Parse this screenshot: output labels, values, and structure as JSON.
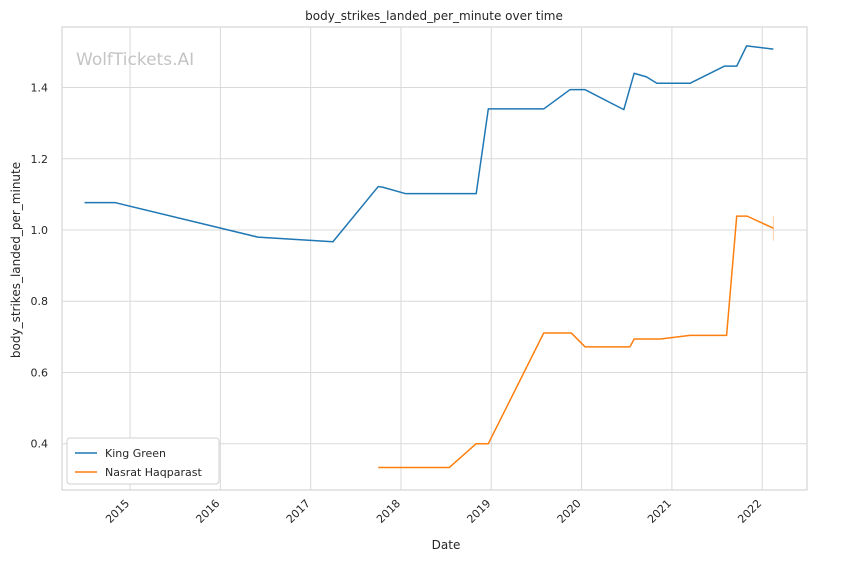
{
  "chart_data": {
    "type": "line",
    "title": "body_strikes_landed_per_minute over time",
    "xlabel": "Date",
    "ylabel": "body_strikes_landed_per_minute",
    "watermark": "WolfTickets.AI",
    "grid": true,
    "legend_position": "lower-left",
    "xlim": [
      "2014-04-01",
      "2022-07-01"
    ],
    "ylim": [
      0.27,
      1.57
    ],
    "x_ticks": [
      "2015",
      "2016",
      "2017",
      "2018",
      "2019",
      "2020",
      "2021",
      "2022"
    ],
    "y_ticks": [
      "0.4",
      "0.6",
      "0.8",
      "1.0",
      "1.2",
      "1.4"
    ],
    "series": [
      {
        "name": "King Green",
        "color": "#1f77b4",
        "points": [
          {
            "x": "2014-07-01",
            "y": 1.077
          },
          {
            "x": "2014-11-01",
            "y": 1.077
          },
          {
            "x": "2016-06-01",
            "y": 0.98
          },
          {
            "x": "2017-04-01",
            "y": 0.967
          },
          {
            "x": "2017-10-01",
            "y": 1.122
          },
          {
            "x": "2017-10-20",
            "y": 1.12
          },
          {
            "x": "2018-01-20",
            "y": 1.102
          },
          {
            "x": "2018-11-01",
            "y": 1.102
          },
          {
            "x": "2018-12-20",
            "y": 1.34
          },
          {
            "x": "2019-08-01",
            "y": 1.34
          },
          {
            "x": "2019-11-15",
            "y": 1.394
          },
          {
            "x": "2020-01-15",
            "y": 1.394
          },
          {
            "x": "2020-06-20",
            "y": 1.338
          },
          {
            "x": "2020-08-01",
            "y": 1.44
          },
          {
            "x": "2020-09-20",
            "y": 1.43
          },
          {
            "x": "2020-11-01",
            "y": 1.412
          },
          {
            "x": "2021-03-15",
            "y": 1.412
          },
          {
            "x": "2021-08-01",
            "y": 1.46
          },
          {
            "x": "2021-09-20",
            "y": 1.46
          },
          {
            "x": "2021-10-30",
            "y": 1.517
          },
          {
            "x": "2022-02-15",
            "y": 1.508
          }
        ]
      },
      {
        "name": "Nasrat Haqparast",
        "color": "#ff7f0e",
        "points": [
          {
            "x": "2017-10-01",
            "y": 0.333
          },
          {
            "x": "2018-07-15",
            "y": 0.333
          },
          {
            "x": "2018-11-01",
            "y": 0.4
          },
          {
            "x": "2018-12-20",
            "y": 0.4
          },
          {
            "x": "2019-08-01",
            "y": 0.711
          },
          {
            "x": "2019-11-20",
            "y": 0.711
          },
          {
            "x": "2020-01-15",
            "y": 0.672
          },
          {
            "x": "2020-07-15",
            "y": 0.672
          },
          {
            "x": "2020-08-01",
            "y": 0.694
          },
          {
            "x": "2020-11-15",
            "y": 0.694
          },
          {
            "x": "2021-03-15",
            "y": 0.704
          },
          {
            "x": "2021-08-10",
            "y": 0.704
          },
          {
            "x": "2021-09-20",
            "y": 1.039
          },
          {
            "x": "2021-11-01",
            "y": 1.039
          },
          {
            "x": "2022-02-15",
            "y": 1.005
          }
        ],
        "error_bar": {
          "x": "2022-02-15",
          "low": 0.97,
          "high": 1.04
        }
      }
    ]
  }
}
